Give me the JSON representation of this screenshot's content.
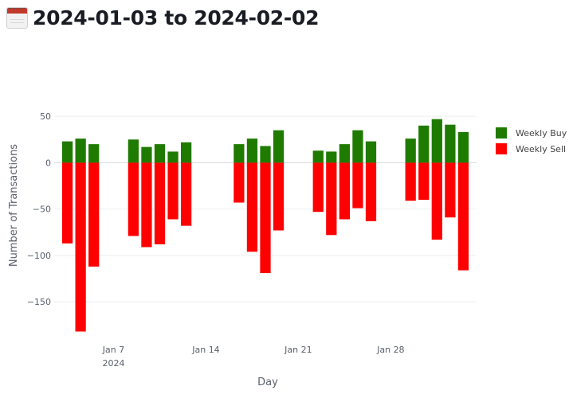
{
  "page": {
    "title": "2024-01-03 to 2024-02-02",
    "title_icon": "calendar-icon"
  },
  "chart_data": {
    "type": "bar",
    "barmode": "relative",
    "x": [
      "2024-01-03",
      "2024-01-04",
      "2024-01-05",
      "2024-01-08",
      "2024-01-09",
      "2024-01-10",
      "2024-01-11",
      "2024-01-12",
      "2024-01-16",
      "2024-01-17",
      "2024-01-18",
      "2024-01-19",
      "2024-01-22",
      "2024-01-23",
      "2024-01-24",
      "2024-01-25",
      "2024-01-26",
      "2024-01-29",
      "2024-01-30",
      "2024-01-31",
      "2024-02-01",
      "2024-02-02"
    ],
    "series": [
      {
        "name": "Weekly Buy",
        "color": "#1f7a00",
        "values": [
          23,
          26,
          20,
          25,
          17,
          20,
          12,
          22,
          20,
          26,
          18,
          35,
          13,
          12,
          20,
          35,
          23,
          26,
          40,
          47,
          41,
          33
        ]
      },
      {
        "name": "Weekly Sell",
        "color": "#ff0000",
        "values": [
          -87,
          -182,
          -112,
          -79,
          -91,
          -88,
          -61,
          -68,
          -43,
          -96,
          -119,
          -73,
          -53,
          -78,
          -61,
          -49,
          -63,
          -41,
          -40,
          -83,
          -59,
          -116
        ]
      }
    ],
    "xlabel": "Day",
    "ylabel": "Number of Transactions",
    "xlim": [
      "2024-01-02",
      "2024-02-03"
    ],
    "ylim": [
      -185,
      57
    ],
    "yticks": [
      50,
      0,
      -50,
      -100,
      -150
    ],
    "xticks": [
      {
        "date": "2024-01-07",
        "label": "Jan 7",
        "sublabel": "2024"
      },
      {
        "date": "2024-01-14",
        "label": "Jan 14",
        "sublabel": ""
      },
      {
        "date": "2024-01-21",
        "label": "Jan 21",
        "sublabel": ""
      },
      {
        "date": "2024-01-28",
        "label": "Jan 28",
        "sublabel": ""
      }
    ],
    "grid": true,
    "legend_position": "right"
  }
}
